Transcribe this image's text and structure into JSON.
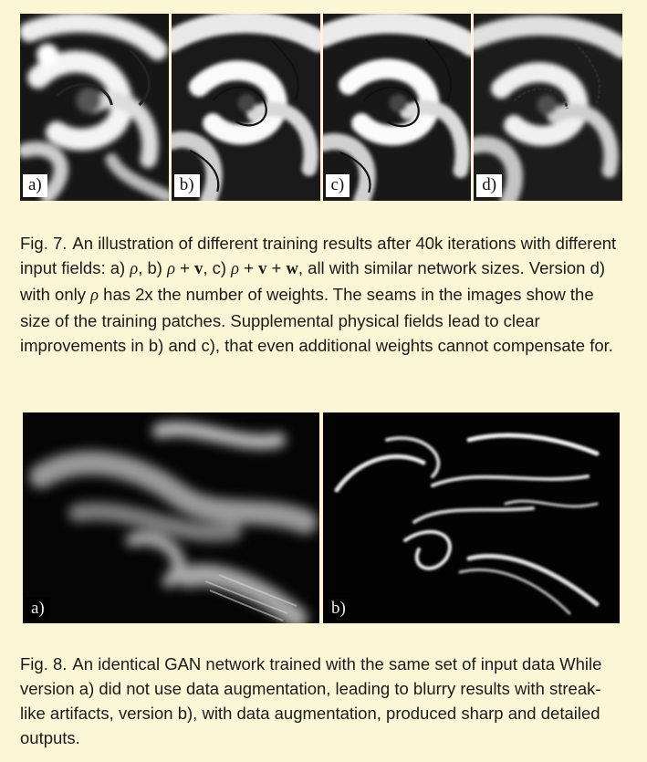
{
  "figure7": {
    "panels": [
      {
        "label": "a)"
      },
      {
        "label": "b)"
      },
      {
        "label": "c)"
      },
      {
        "label": "d)"
      }
    ],
    "caption": {
      "number": "Fig. 7.",
      "part1": "An illustration of different training results after 40k iterations with different input fields: a) ",
      "rho_a": "ρ",
      "part2": ", b) ",
      "rho_b": "ρ",
      "part3": " + ",
      "v_b": "v",
      "part4": ", c) ",
      "rho_c": "ρ",
      "part5": " + ",
      "v_c": "v",
      "part6": " + ",
      "w_c": "w",
      "part7": ", all with similar network sizes. Version d) with only ",
      "rho_d": "ρ",
      "part8": " has 2x the number of weights. The seams in the images show the size of the training patches. Supplemental physical fields lead to clear improvements in b) and c), that even additional weights cannot compensate for."
    }
  },
  "figure8": {
    "panels": [
      {
        "label": "a)"
      },
      {
        "label": "b)"
      }
    ],
    "caption": {
      "number": "Fig. 8.",
      "text": "An identical GAN network trained with the same set of input data While version a) did not use data augmentation, leading to blurry results with streak-like artifacts, version b), with data augmentation, produced sharp and detailed outputs."
    }
  }
}
